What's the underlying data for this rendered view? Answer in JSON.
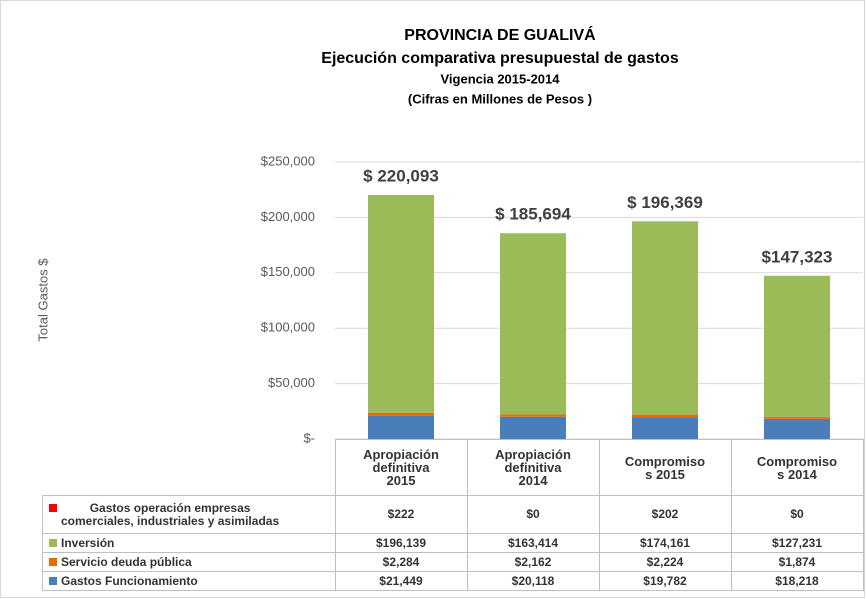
{
  "chart_data": {
    "type": "stacked_bar",
    "title": "PROVINCIA DE GUALIVÁ",
    "subtitle": "Ejecución comparativa presupuestal de gastos",
    "subtitle2": "Vigencia 2015-2014",
    "subtitle3": "(Cifras en Millones de Pesos )",
    "y_label": "Total Gastos $",
    "categories": [
      "Apropiación\ndefinitiva\n2015",
      "Apropiación\ndefinitiva\n2014",
      "Compromiso\ns 2015",
      "Compromiso\ns 2014"
    ],
    "series": [
      {
        "name": "Gastos Funcionamiento",
        "color": "#4a7ebb",
        "values": [
          21449,
          20118,
          19782,
          18218
        ],
        "value_labels": [
          "$21,449",
          "$20,118",
          "$19,782",
          "$18,218"
        ]
      },
      {
        "name": "Servicio deuda pública",
        "color": "#e46c0a",
        "values": [
          2284,
          2162,
          2224,
          1874
        ],
        "value_labels": [
          "$2,284",
          "$2,162",
          "$2,224",
          "$1,874"
        ]
      },
      {
        "name": "Inversión",
        "color": "#9bbb59",
        "values": [
          196139,
          163414,
          174161,
          127231
        ],
        "value_labels": [
          "$196,139",
          "$163,414",
          "$174,161",
          "$127,231"
        ]
      },
      {
        "name": "Gastos operación empresas\ncomerciales, industriales y asimiladas",
        "color": "#ff0000",
        "values": [
          222,
          0,
          202,
          0
        ],
        "value_labels": [
          "$222",
          "$0",
          "$202",
          "$0"
        ]
      }
    ],
    "totals": {
      "values": [
        220093,
        185694,
        196369,
        147323
      ],
      "value_labels": [
        "$ 220,093",
        "$ 185,694",
        "$ 196,369",
        "$147,323"
      ]
    },
    "ylim": [
      0,
      250000
    ],
    "yticks": [
      {
        "value": 0,
        "label": "$-"
      },
      {
        "value": 50000,
        "label": "$50,000"
      },
      {
        "value": 100000,
        "label": "$100,000"
      },
      {
        "value": 150000,
        "label": "$150,000"
      },
      {
        "value": 200000,
        "label": "$200,000"
      },
      {
        "value": 250000,
        "label": "$250,000"
      }
    ],
    "grid": true
  }
}
